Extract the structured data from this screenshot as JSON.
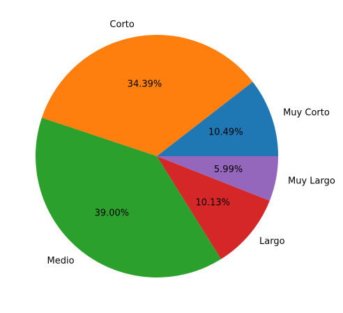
{
  "chart_data": {
    "type": "pie",
    "title": "",
    "categories": [
      "Muy Corto",
      "Corto",
      "Medio",
      "Largo",
      "Muy Largo"
    ],
    "values": [
      10.49,
      34.39,
      39.0,
      10.13,
      5.99
    ],
    "percent_labels": [
      "10.49%",
      "34.39%",
      "39.00%",
      "10.13%",
      "5.99%"
    ],
    "colors": [
      "#1f77b4",
      "#ff7f0e",
      "#2ca02c",
      "#d62728",
      "#9467bd"
    ],
    "start_angle_deg": 0,
    "direction": "counterclockwise",
    "legend": "none"
  }
}
